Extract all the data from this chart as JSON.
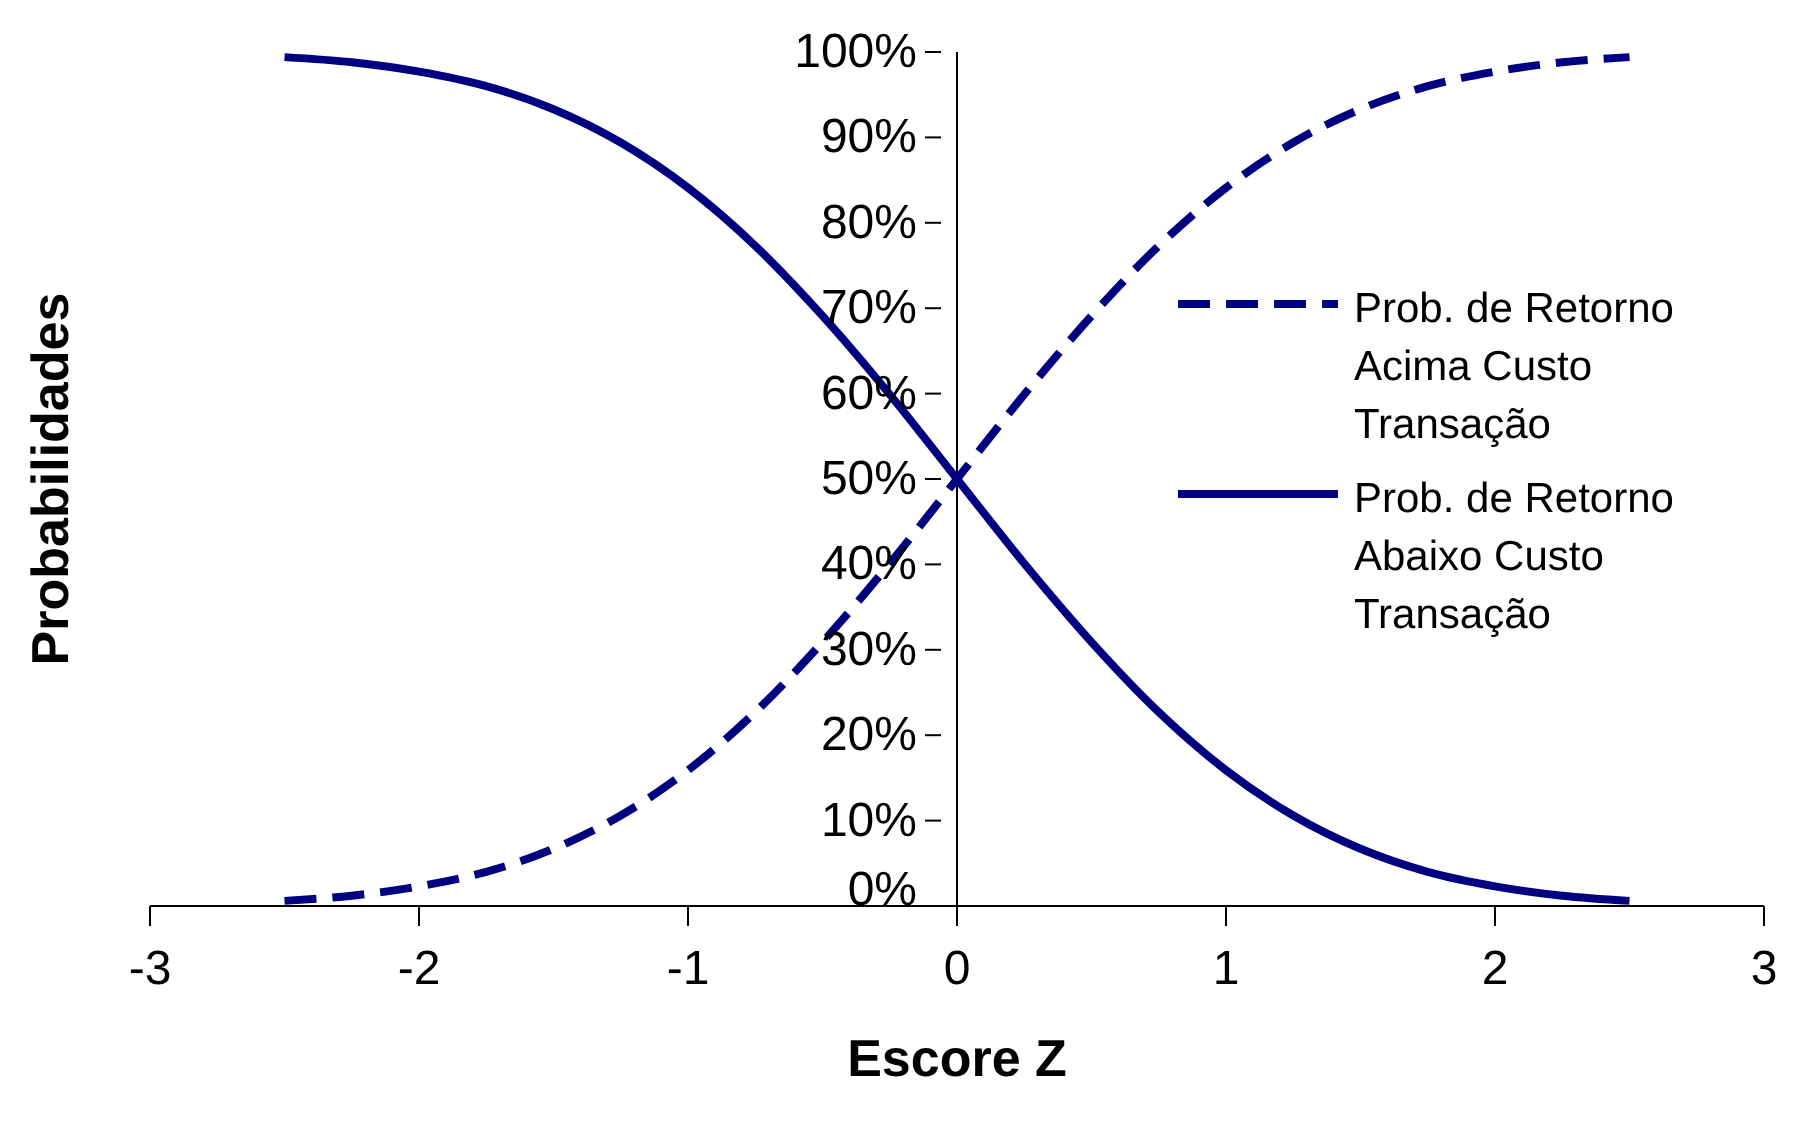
{
  "chart_data": {
    "type": "line",
    "xlabel": "Escore Z",
    "ylabel": "Probabilidades",
    "x": [
      -2.5,
      -2.25,
      -2,
      -1.75,
      -1.5,
      -1.25,
      -1,
      -0.75,
      -0.5,
      -0.25,
      0,
      0.25,
      0.5,
      0.75,
      1,
      1.25,
      1.5,
      1.75,
      2,
      2.25,
      2.5
    ],
    "series": [
      {
        "name": "Prob. de Retorno Acima Custo Transação",
        "color": "#000080",
        "line_style": "dashed",
        "values": [
          0.6,
          1.2,
          2.3,
          4,
          6.7,
          10.6,
          15.9,
          22.7,
          30.9,
          40.1,
          50,
          59.9,
          69.1,
          77.3,
          84.1,
          89.4,
          93.3,
          96,
          97.7,
          98.8,
          99.4
        ]
      },
      {
        "name": "Prob. de Retorno Abaixo Custo Transação",
        "color": "#000080",
        "line_style": "solid",
        "values": [
          99.4,
          98.8,
          97.7,
          96,
          93.3,
          89.4,
          84.1,
          77.3,
          69.1,
          59.9,
          50,
          40.1,
          30.9,
          22.7,
          15.9,
          10.6,
          6.7,
          4,
          2.3,
          1.2,
          0.6
        ]
      }
    ],
    "xlim": [
      -3,
      3
    ],
    "xticks": [
      -3,
      -2,
      -1,
      0,
      1,
      2,
      3
    ],
    "ylim": [
      0,
      100
    ],
    "yticks": [
      {
        "value": 0,
        "label": "0%"
      },
      {
        "value": 10,
        "label": "10%"
      },
      {
        "value": 20,
        "label": "20%"
      },
      {
        "value": 30,
        "label": "30%"
      },
      {
        "value": 40,
        "label": "40%"
      },
      {
        "value": 50,
        "label": "50%"
      },
      {
        "value": 60,
        "label": "60%"
      },
      {
        "value": 70,
        "label": "70%"
      },
      {
        "value": 80,
        "label": "80%"
      },
      {
        "value": 90,
        "label": "90%"
      },
      {
        "value": 100,
        "label": "100%"
      }
    ],
    "grid": false,
    "legend": "right",
    "marker": "none"
  }
}
